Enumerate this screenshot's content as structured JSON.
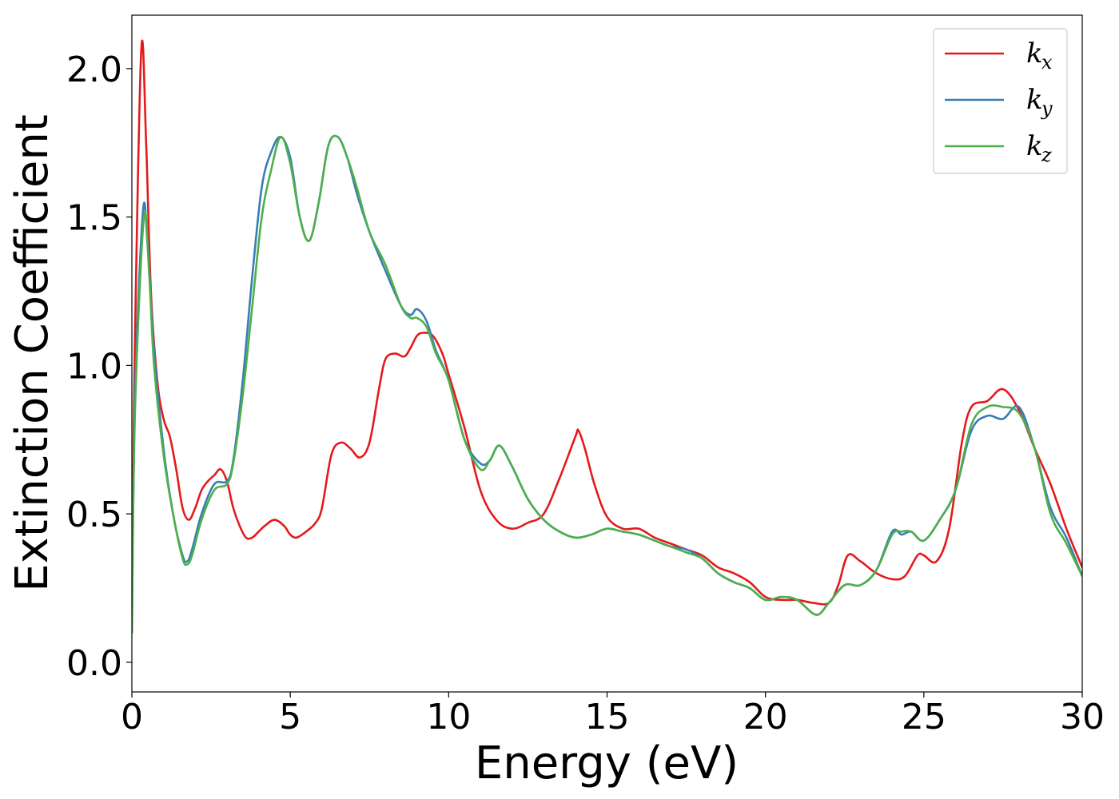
{
  "chart_data": {
    "type": "line",
    "title": "",
    "xlabel": "Energy (eV)",
    "ylabel": "Extinction Coefficient",
    "xlim": [
      0,
      30
    ],
    "ylim": [
      -0.1,
      2.18
    ],
    "xticks": [
      0,
      5,
      10,
      15,
      20,
      25,
      30
    ],
    "xtick_labels": [
      "0",
      "5",
      "10",
      "15",
      "20",
      "25",
      "30"
    ],
    "yticks": [
      0.0,
      0.5,
      1.0,
      1.5,
      2.0
    ],
    "ytick_labels": [
      "0.0",
      "0.5",
      "1.0",
      "1.5",
      "2.0"
    ],
    "grid": false,
    "legend_position": "top-right",
    "series": [
      {
        "name": "k",
        "subscript": "x",
        "color": "#e41a1c",
        "x": [
          0,
          0.1,
          0.3,
          0.45,
          0.6,
          0.8,
          1.0,
          1.2,
          1.4,
          1.6,
          1.8,
          2.0,
          2.2,
          2.4,
          2.6,
          2.8,
          3.0,
          3.2,
          3.4,
          3.6,
          3.8,
          4.0,
          4.2,
          4.5,
          4.8,
          5.0,
          5.2,
          5.5,
          5.8,
          6.0,
          6.3,
          6.6,
          6.9,
          7.2,
          7.5,
          7.8,
          8.0,
          8.3,
          8.6,
          8.8,
          9.0,
          9.2,
          9.5,
          9.8,
          10.0,
          10.5,
          11.0,
          11.5,
          12.0,
          12.5,
          13.0,
          13.5,
          14.0,
          14.1,
          14.3,
          14.6,
          15.0,
          15.5,
          16.0,
          16.5,
          17.0,
          17.5,
          18.0,
          18.5,
          19.0,
          19.5,
          20.0,
          20.5,
          21.0,
          21.5,
          22.0,
          22.3,
          22.6,
          23.0,
          23.5,
          24.0,
          24.4,
          24.8,
          25.0,
          25.4,
          25.8,
          26.2,
          26.5,
          27.0,
          27.5,
          28.0,
          28.5,
          29.0,
          29.5,
          30.0
        ],
        "y": [
          0.2,
          1.1,
          2.07,
          1.75,
          1.25,
          0.95,
          0.82,
          0.76,
          0.65,
          0.52,
          0.48,
          0.52,
          0.58,
          0.61,
          0.63,
          0.65,
          0.61,
          0.52,
          0.46,
          0.42,
          0.42,
          0.44,
          0.46,
          0.48,
          0.46,
          0.43,
          0.42,
          0.44,
          0.47,
          0.52,
          0.7,
          0.74,
          0.72,
          0.69,
          0.74,
          0.92,
          1.02,
          1.04,
          1.03,
          1.06,
          1.1,
          1.11,
          1.1,
          1.04,
          0.97,
          0.79,
          0.58,
          0.48,
          0.45,
          0.47,
          0.5,
          0.62,
          0.76,
          0.78,
          0.72,
          0.6,
          0.49,
          0.45,
          0.45,
          0.42,
          0.4,
          0.38,
          0.36,
          0.32,
          0.3,
          0.27,
          0.22,
          0.21,
          0.21,
          0.2,
          0.2,
          0.26,
          0.36,
          0.34,
          0.3,
          0.28,
          0.29,
          0.36,
          0.36,
          0.34,
          0.45,
          0.74,
          0.86,
          0.88,
          0.92,
          0.85,
          0.72,
          0.6,
          0.45,
          0.32
        ]
      },
      {
        "name": "k",
        "subscript": "y",
        "color": "#377eb8",
        "x": [
          0,
          0.1,
          0.35,
          0.5,
          0.7,
          1.0,
          1.3,
          1.6,
          1.75,
          1.9,
          2.2,
          2.6,
          3.0,
          3.2,
          3.5,
          3.8,
          4.1,
          4.4,
          4.7,
          5.0,
          5.3,
          5.6,
          5.9,
          6.2,
          6.5,
          6.8,
          7.1,
          7.5,
          8.0,
          8.5,
          8.8,
          9.0,
          9.3,
          9.6,
          10.0,
          10.5,
          11.0,
          11.3,
          11.6,
          12.0,
          12.5,
          13.0,
          13.5,
          14.0,
          14.5,
          15.0,
          15.5,
          16.0,
          16.5,
          17.0,
          17.5,
          18.0,
          18.5,
          19.0,
          19.5,
          20.0,
          20.5,
          21.0,
          21.6,
          22.0,
          22.5,
          23.0,
          23.5,
          24.0,
          24.3,
          24.6,
          25.0,
          25.5,
          26.0,
          26.5,
          27.0,
          27.5,
          28.0,
          28.5,
          29.0,
          29.5,
          30.0
        ],
        "y": [
          0.1,
          0.9,
          1.52,
          1.4,
          1.05,
          0.72,
          0.5,
          0.36,
          0.34,
          0.38,
          0.5,
          0.6,
          0.61,
          0.68,
          0.95,
          1.3,
          1.6,
          1.72,
          1.77,
          1.7,
          1.5,
          1.42,
          1.55,
          1.74,
          1.77,
          1.7,
          1.58,
          1.45,
          1.32,
          1.2,
          1.17,
          1.19,
          1.15,
          1.05,
          0.95,
          0.75,
          0.67,
          0.68,
          0.73,
          0.66,
          0.55,
          0.48,
          0.44,
          0.42,
          0.43,
          0.45,
          0.44,
          0.43,
          0.41,
          0.39,
          0.38,
          0.35,
          0.3,
          0.27,
          0.25,
          0.21,
          0.22,
          0.21,
          0.16,
          0.2,
          0.26,
          0.26,
          0.31,
          0.44,
          0.43,
          0.44,
          0.41,
          0.48,
          0.58,
          0.78,
          0.83,
          0.82,
          0.86,
          0.72,
          0.52,
          0.42,
          0.29
        ]
      },
      {
        "name": "k",
        "subscript": "z",
        "color": "#4daf4a",
        "x": [
          0,
          0.1,
          0.38,
          0.55,
          0.7,
          1.0,
          1.3,
          1.6,
          1.75,
          1.9,
          2.2,
          2.6,
          3.0,
          3.2,
          3.5,
          3.8,
          4.1,
          4.4,
          4.7,
          5.0,
          5.3,
          5.6,
          5.9,
          6.2,
          6.5,
          6.8,
          7.1,
          7.5,
          8.0,
          8.5,
          8.8,
          9.0,
          9.3,
          9.6,
          10.0,
          10.5,
          11.0,
          11.3,
          11.6,
          12.0,
          12.5,
          13.0,
          13.5,
          14.0,
          14.5,
          15.0,
          15.5,
          16.0,
          16.5,
          17.0,
          17.5,
          18.0,
          18.5,
          19.0,
          19.5,
          20.0,
          20.5,
          21.0,
          21.6,
          22.0,
          22.5,
          23.0,
          23.5,
          24.0,
          24.3,
          24.6,
          25.0,
          25.5,
          26.0,
          26.5,
          27.0,
          27.5,
          28.0,
          28.5,
          29.0,
          29.5,
          30.0
        ],
        "y": [
          0.1,
          0.85,
          1.5,
          1.3,
          1.0,
          0.7,
          0.5,
          0.35,
          0.33,
          0.36,
          0.48,
          0.58,
          0.6,
          0.67,
          0.9,
          1.2,
          1.5,
          1.66,
          1.77,
          1.68,
          1.5,
          1.42,
          1.55,
          1.74,
          1.77,
          1.7,
          1.6,
          1.45,
          1.34,
          1.2,
          1.16,
          1.16,
          1.13,
          1.04,
          0.95,
          0.75,
          0.65,
          0.68,
          0.73,
          0.66,
          0.55,
          0.48,
          0.44,
          0.42,
          0.43,
          0.45,
          0.44,
          0.43,
          0.41,
          0.39,
          0.37,
          0.35,
          0.3,
          0.27,
          0.25,
          0.21,
          0.22,
          0.21,
          0.16,
          0.2,
          0.26,
          0.26,
          0.31,
          0.43,
          0.44,
          0.44,
          0.41,
          0.48,
          0.58,
          0.8,
          0.86,
          0.86,
          0.84,
          0.72,
          0.5,
          0.4,
          0.29
        ]
      }
    ]
  }
}
